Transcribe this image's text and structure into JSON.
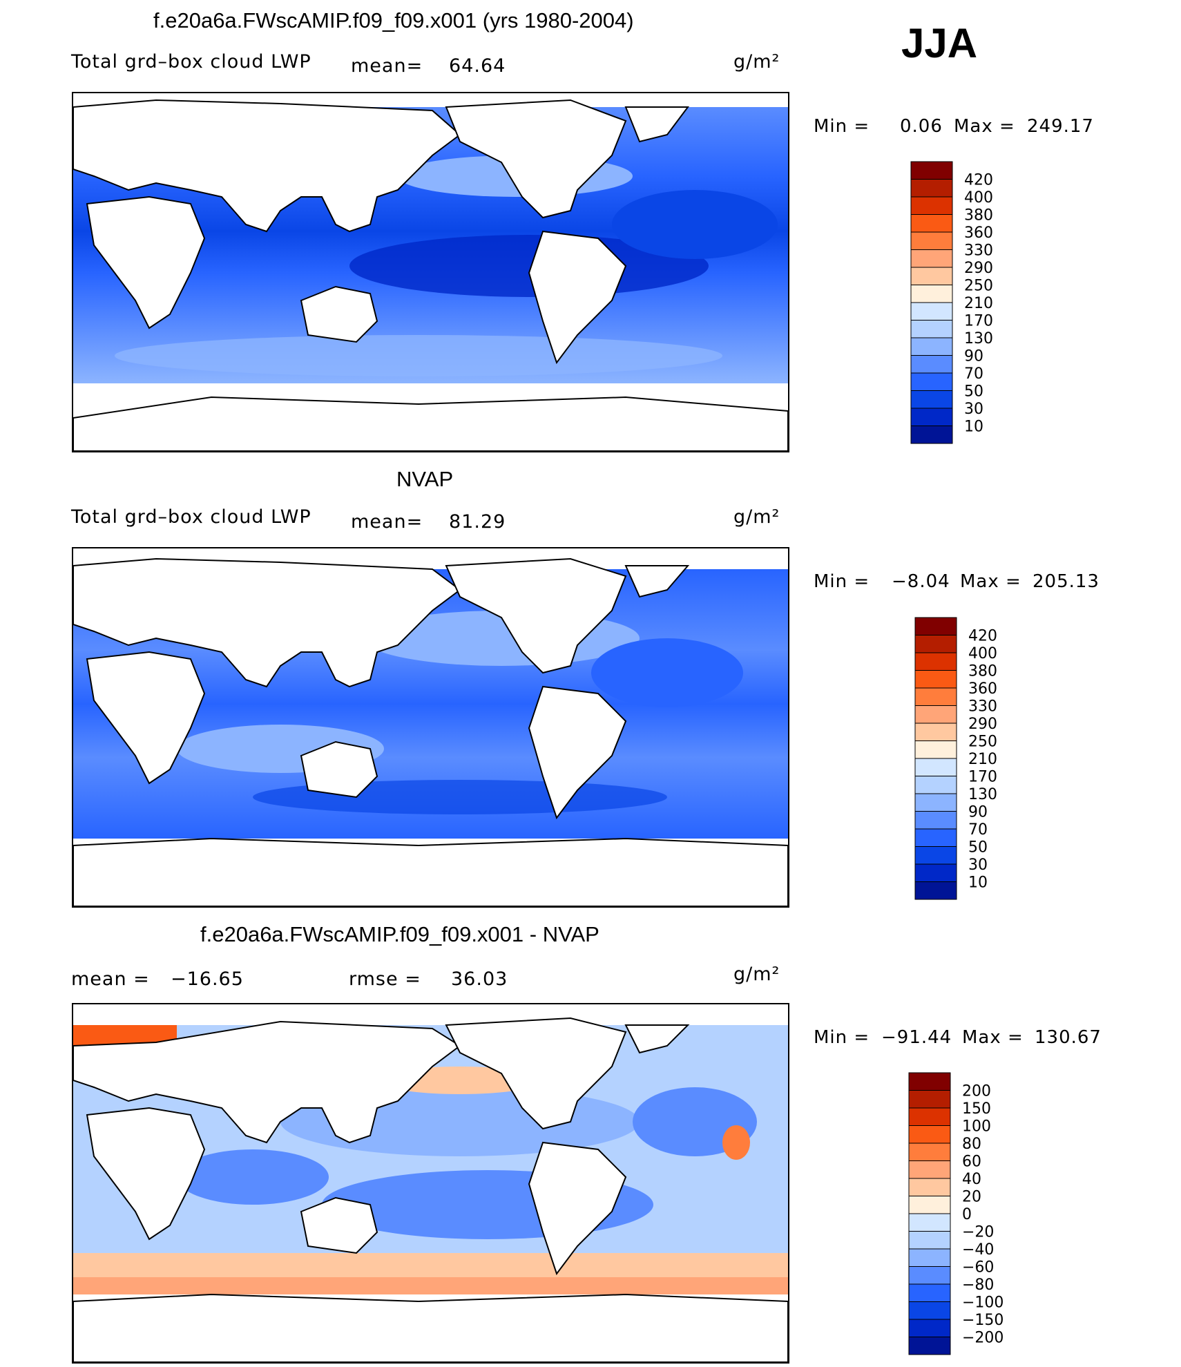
{
  "season": "JJA",
  "panels": [
    {
      "id": "model",
      "title": "f.e20a6a.FWscAMIP.f09_f09.x001 (yrs 1980-2004)",
      "variable": "Total grd–box cloud LWP",
      "mean_label": "mean=",
      "mean_value": "64.64",
      "units": "g/m²",
      "min_label": "Min  =",
      "min_value": "0.06",
      "max_label": "Max  =",
      "max_value": "249.17",
      "colormap": "blues"
    },
    {
      "id": "obs",
      "title": "NVAP",
      "variable": "Total grd–box cloud LWP",
      "mean_label": "mean=",
      "mean_value": "81.29",
      "units": "g/m²",
      "min_label": "Min  =",
      "min_value": "−8.04",
      "max_label": "Max  =",
      "max_value": "205.13",
      "colormap": "blues"
    },
    {
      "id": "diff",
      "title": "f.e20a6a.FWscAMIP.f09_f09.x001 - NVAP",
      "mean_label": "mean  =",
      "mean_value": "−16.65",
      "rmse_label": "rmse  =",
      "rmse_value": "36.03",
      "units": "g/m²",
      "min_label": "Min  =",
      "min_value": "−91.44",
      "max_label": "Max  =",
      "max_value": "130.67",
      "colormap": "diverging"
    }
  ],
  "chart_data": [
    {
      "type": "heatmap",
      "title": "f.e20a6a.FWscAMIP.f09_f09.x001 (yrs 1980-2004)",
      "variable": "Total grd-box cloud LWP",
      "units": "g/m2",
      "mean": 64.64,
      "min": 0.06,
      "max": 249.17,
      "colorbar_levels": [
        "420",
        "400",
        "380",
        "360",
        "330",
        "290",
        "250",
        "210",
        "170",
        "130",
        "90",
        "70",
        "50",
        "30",
        "10"
      ],
      "colorbar_colors": [
        "#800000",
        "#b41e00",
        "#dc3200",
        "#fa5a14",
        "#ff7d3c",
        "#ffa578",
        "#ffc8a0",
        "#fff0dc",
        "#d2e6ff",
        "#b4d2ff",
        "#8cb4ff",
        "#5a8cff",
        "#2864ff",
        "#0a46e6",
        "#0028c8",
        "#001496"
      ]
    },
    {
      "type": "heatmap",
      "title": "NVAP",
      "variable": "Total grd-box cloud LWP",
      "units": "g/m2",
      "mean": 81.29,
      "min": -8.04,
      "max": 205.13,
      "colorbar_levels": [
        "420",
        "400",
        "380",
        "360",
        "330",
        "290",
        "250",
        "210",
        "170",
        "130",
        "90",
        "70",
        "50",
        "30",
        "10"
      ],
      "colorbar_colors": [
        "#800000",
        "#b41e00",
        "#dc3200",
        "#fa5a14",
        "#ff7d3c",
        "#ffa578",
        "#ffc8a0",
        "#fff0dc",
        "#d2e6ff",
        "#b4d2ff",
        "#8cb4ff",
        "#5a8cff",
        "#2864ff",
        "#0a46e6",
        "#0028c8",
        "#001496"
      ]
    },
    {
      "type": "heatmap",
      "title": "f.e20a6a.FWscAMIP.f09_f09.x001 - NVAP",
      "units": "g/m2",
      "mean": -16.65,
      "rmse": 36.03,
      "min": -91.44,
      "max": 130.67,
      "colorbar_levels": [
        "200",
        "150",
        "100",
        "80",
        "60",
        "40",
        "20",
        "0",
        "−20",
        "−40",
        "−60",
        "−80",
        "−100",
        "−150",
        "−200"
      ],
      "colorbar_colors": [
        "#800000",
        "#b41e00",
        "#dc3200",
        "#fa5a14",
        "#ff7d3c",
        "#ffa578",
        "#ffc8a0",
        "#fff0dc",
        "#d2e6ff",
        "#b4d2ff",
        "#8cb4ff",
        "#5a8cff",
        "#2864ff",
        "#0a46e6",
        "#0028c8",
        "#001496"
      ]
    }
  ]
}
